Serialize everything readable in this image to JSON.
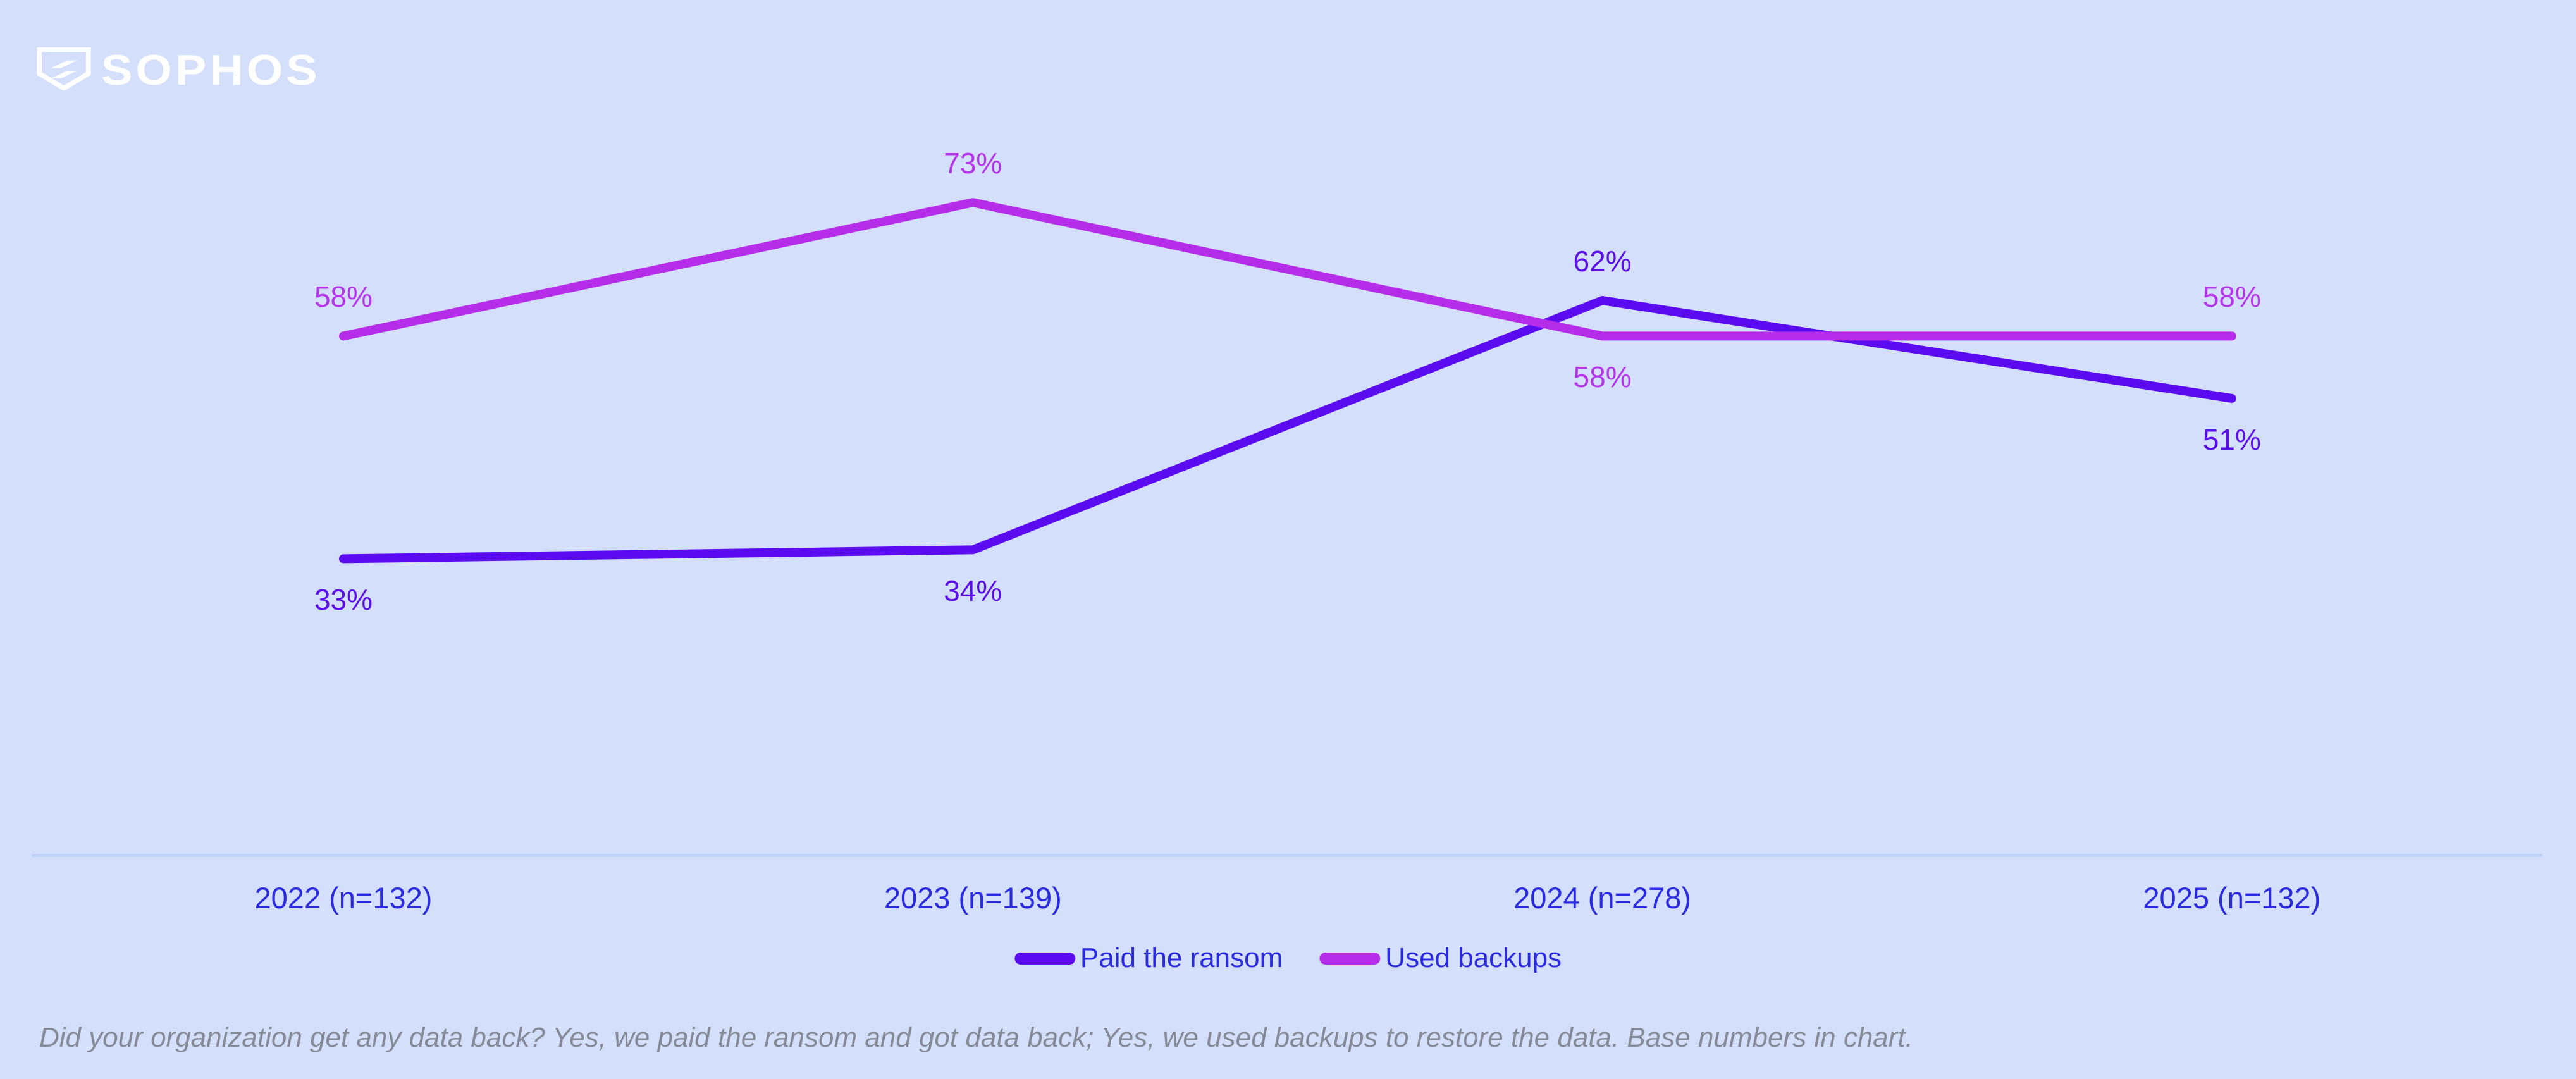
{
  "brand": {
    "logo_text": "SOPHOS",
    "logo_color": "#ffffff"
  },
  "colors": {
    "background": "#d4dffb",
    "axis_line": "#bfd3f8",
    "axis_text": "#2a2ae0",
    "legend_text": "#2a2ae0",
    "footnote_text": "#858b96"
  },
  "chart_data": {
    "type": "line",
    "categories": [
      "2022 (n=132)",
      "2023 (n=139)",
      "2024 (n=278)",
      "2025 (n=132)"
    ],
    "series": [
      {
        "name": "Paid the ransom",
        "values": [
          33,
          34,
          62,
          51
        ],
        "color": "#5a0bef",
        "label_color": "#5c10e8",
        "label_positions": [
          "below",
          "below",
          "above",
          "below"
        ]
      },
      {
        "name": "Used backups",
        "values": [
          58,
          73,
          58,
          58
        ],
        "color": "#b52ce9",
        "label_color": "#b535ea",
        "label_positions": [
          "above",
          "above",
          "below",
          "above"
        ]
      }
    ],
    "value_suffix": "%",
    "title": "",
    "xlabel": "",
    "ylabel": "",
    "ylim": [
      0,
      90
    ],
    "grid": false,
    "legend_position": "bottom-center"
  },
  "footnote": {
    "text": "Did your organization get any data back? Yes, we paid the ransom and got data back; Yes, we used backups to restore the data. Base numbers in chart."
  }
}
